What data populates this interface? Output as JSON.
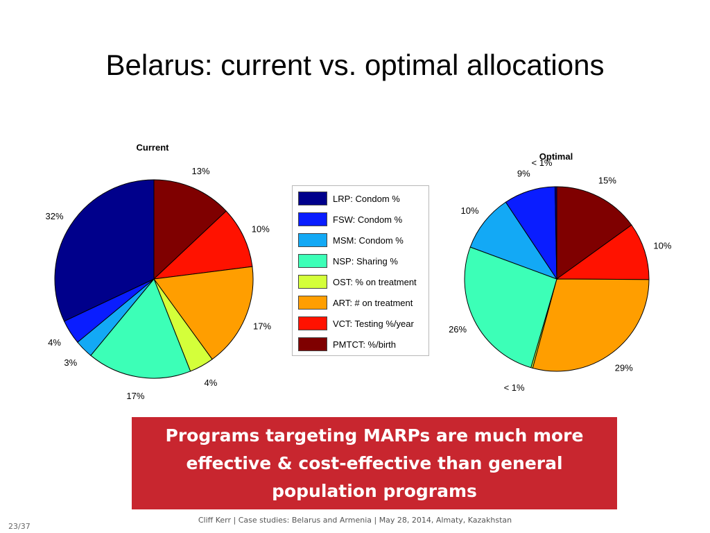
{
  "title": "Belarus: current vs. optimal allocations",
  "legend": [
    {
      "label": "LRP: Condom %",
      "color": "#00008b"
    },
    {
      "label": "FSW: Condom %",
      "color": "#0a1dff"
    },
    {
      "label": "MSM: Condom %",
      "color": "#13a9f5"
    },
    {
      "label": "NSP: Sharing %",
      "color": "#3cffb7"
    },
    {
      "label": "OST: % on treatment",
      "color": "#d4ff3a"
    },
    {
      "label": "ART: # on treatment",
      "color": "#ff9e00"
    },
    {
      "label": "VCT: Testing %/year",
      "color": "#ff1200"
    },
    {
      "label": "PMTCT: %/birth",
      "color": "#7f0000"
    }
  ],
  "chart_data": [
    {
      "type": "pie",
      "title": "Current",
      "start": "top, clockwise",
      "slices": [
        {
          "label": "PMTCT: %/birth",
          "value": 13,
          "text": "13%"
        },
        {
          "label": "VCT: Testing %/year",
          "value": 10,
          "text": "10%"
        },
        {
          "label": "ART: # on treatment",
          "value": 17,
          "text": "17%"
        },
        {
          "label": "OST: % on treatment",
          "value": 4,
          "text": "4%"
        },
        {
          "label": "NSP: Sharing %",
          "value": 17,
          "text": "17%"
        },
        {
          "label": "MSM: Condom %",
          "value": 3,
          "text": "3%"
        },
        {
          "label": "FSW: Condom %",
          "value": 4,
          "text": "4%"
        },
        {
          "label": "LRP: Condom %",
          "value": 32,
          "text": "32%"
        }
      ]
    },
    {
      "type": "pie",
      "title": "Optimal",
      "start": "top, clockwise",
      "slices": [
        {
          "label": "PMTCT: %/birth",
          "value": 15,
          "text": "15%"
        },
        {
          "label": "VCT: Testing %/year",
          "value": 10,
          "text": "10%"
        },
        {
          "label": "ART: # on treatment",
          "value": 29,
          "text": "29%"
        },
        {
          "label": "OST: % on treatment",
          "value": 0.3,
          "text": "< 1%"
        },
        {
          "label": "NSP: Sharing %",
          "value": 26,
          "text": "26%"
        },
        {
          "label": "MSM: Condom %",
          "value": 10,
          "text": "10%"
        },
        {
          "label": "FSW: Condom %",
          "value": 9,
          "text": "9%"
        },
        {
          "label": "LRP: Condom %",
          "value": 0.3,
          "text": "< 1%"
        }
      ]
    }
  ],
  "callout": "Programs targeting MARPs are much more effective & cost-effective than general population programs",
  "footer": "Cliff Kerr | Case studies: Belarus and Armenia | May 28, 2014, Almaty, Kazakhstan",
  "page_number": "23/37"
}
